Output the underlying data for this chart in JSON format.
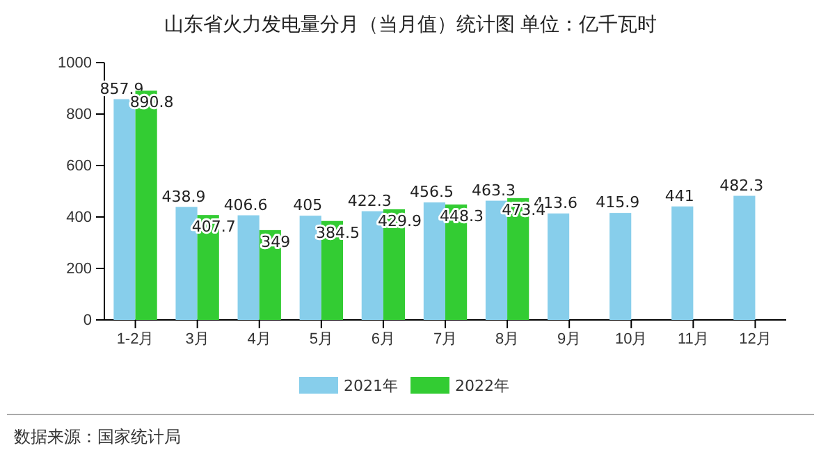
{
  "chart_data": {
    "type": "bar",
    "title": "山东省火力发电量分月（当月值）统计图 单位：亿千瓦时",
    "categories": [
      "1-2月",
      "3月",
      "4月",
      "5月",
      "6月",
      "7月",
      "8月",
      "9月",
      "10月",
      "11月",
      "12月"
    ],
    "series": [
      {
        "name": "2021年",
        "color": "#87ceeb",
        "values": [
          857.9,
          438.9,
          406.6,
          405,
          422.3,
          456.5,
          463.3,
          413.6,
          415.9,
          441,
          482.3
        ]
      },
      {
        "name": "2022年",
        "color": "#33cc33",
        "values": [
          890.8,
          407.7,
          349,
          384.5,
          429.9,
          448.3,
          473.4,
          null,
          null,
          null,
          null
        ]
      }
    ],
    "ylim": [
      0,
      1000
    ],
    "yticks": [
      0,
      200,
      400,
      600,
      800,
      1000
    ],
    "data_labels": true,
    "legend": "bottom",
    "annotations": [
      "数据来源：国家统计局"
    ]
  }
}
